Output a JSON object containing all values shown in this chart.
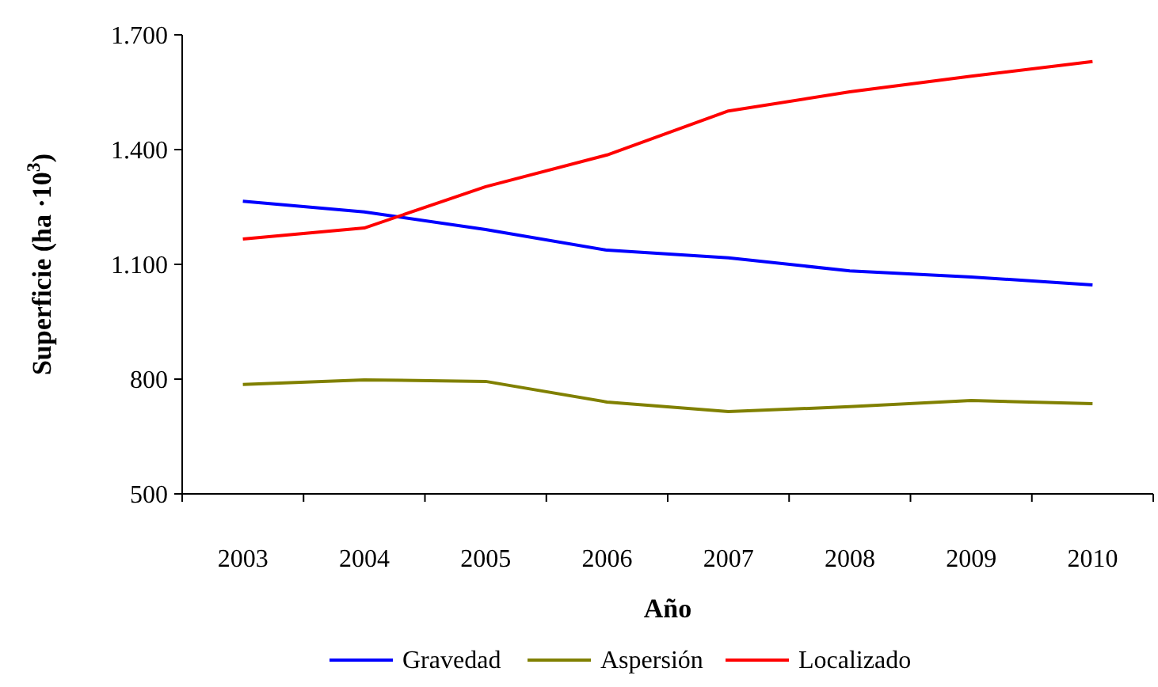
{
  "chart_data": {
    "type": "line",
    "xlabel": "Año",
    "ylabel": "Superficie (ha ·10$^{3}$)",
    "categories": [
      "2003",
      "2004",
      "2005",
      "2006",
      "2007",
      "2008",
      "2009",
      "2010"
    ],
    "series": [
      {
        "name": "Gravedad",
        "color": "#0000ff",
        "values": [
          1265,
          1237,
          1191,
          1137,
          1117,
          1083,
          1067,
          1046
        ]
      },
      {
        "name": "Aspersión",
        "color": "#808000",
        "values": [
          786,
          798,
          794,
          740,
          715,
          728,
          744,
          736
        ]
      },
      {
        "name": "Localizado",
        "color": "#ff0000",
        "values": [
          1166,
          1195,
          1303,
          1386,
          1501,
          1551,
          1592,
          1630
        ]
      }
    ],
    "ylim": [
      500,
      1700
    ],
    "yticks": [
      500,
      800,
      {
        "value": 1100,
        "label": "1.100"
      },
      {
        "value": 1400,
        "label": "1.400"
      },
      {
        "value": 1700,
        "label": "1.700"
      }
    ],
    "grid": false,
    "legend": "bottom",
    "marker": "none",
    "line_style": "solid"
  }
}
